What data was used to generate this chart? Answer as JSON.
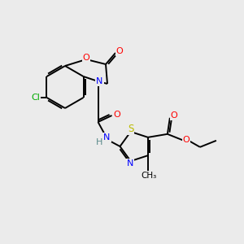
{
  "background_color": "#ebebeb",
  "colors": {
    "O": "#ff0000",
    "N": "#0000ff",
    "S": "#bbbb00",
    "Cl": "#00aa00",
    "C": "#000000",
    "H": "#5a8a8a"
  },
  "figsize": [
    3.0,
    3.0
  ],
  "dpi": 100
}
